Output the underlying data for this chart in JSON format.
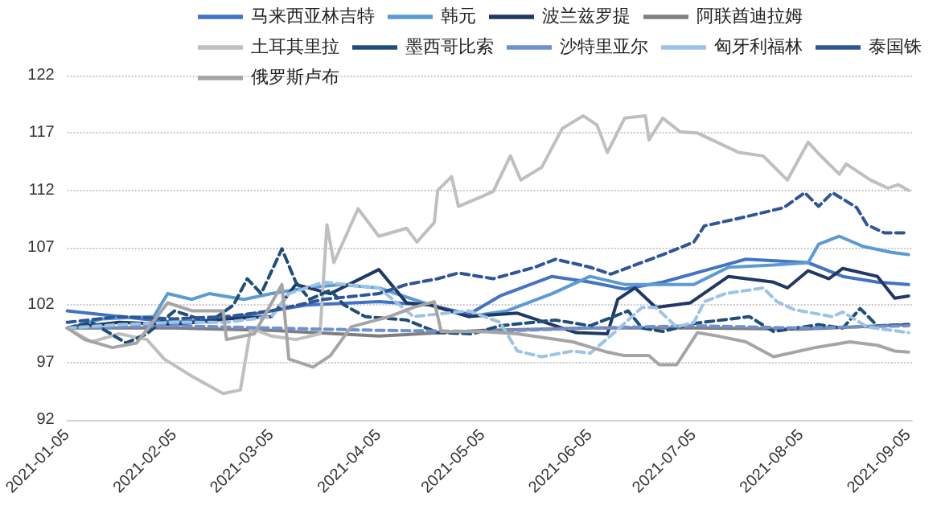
{
  "chart_data": {
    "type": "line",
    "legend": "top",
    "grid": "y",
    "marker": "none",
    "xlim": [
      "2021-01-05",
      "2021-09-06"
    ],
    "xticks": [
      "2021-01-05",
      "2021-02-05",
      "2021-03-05",
      "2021-04-05",
      "2021-05-05",
      "2021-06-05",
      "2021-07-05",
      "2021-08-05",
      "2021-09-05"
    ],
    "ylim": [
      92,
      122
    ],
    "yticks": [
      92,
      97,
      102,
      107,
      112,
      117,
      122
    ],
    "series": [
      {
        "name": "马来西亚林吉特",
        "color": "#4472c4",
        "line_style": "solid",
        "x": [
          "2021-01-05",
          "2021-01-20",
          "2021-02-05",
          "2021-02-20",
          "2021-03-05",
          "2021-03-15",
          "2021-04-05",
          "2021-04-20",
          "2021-05-01",
          "2021-05-10",
          "2021-05-25",
          "2021-06-05",
          "2021-06-15",
          "2021-06-26",
          "2021-07-14",
          "2021-07-20",
          "2021-08-07",
          "2021-08-17",
          "2021-08-27",
          "2021-09-05"
        ],
        "values": [
          101.5,
          101,
          100.5,
          100.8,
          101.5,
          102,
          102.3,
          102,
          101.2,
          102.8,
          104.5,
          104,
          103.4,
          104,
          105.5,
          106,
          105.7,
          104.5,
          104,
          103.8
        ]
      },
      {
        "name": "韩元",
        "color": "#5b9bd5",
        "line_style": "solid",
        "x": [
          "2021-01-05",
          "2021-01-15",
          "2021-01-30",
          "2021-02-03",
          "2021-02-10",
          "2021-02-15",
          "2021-02-25",
          "2021-03-05",
          "2021-03-15",
          "2021-03-25",
          "2021-04-05",
          "2021-04-20",
          "2021-05-01",
          "2021-05-12",
          "2021-05-25",
          "2021-06-05",
          "2021-06-15",
          "2021-07-05",
          "2021-07-15",
          "2021-07-28",
          "2021-08-07",
          "2021-08-10",
          "2021-08-16",
          "2021-08-23",
          "2021-08-31",
          "2021-09-05"
        ],
        "values": [
          100,
          100.8,
          101,
          103,
          102.5,
          103,
          102.5,
          103,
          103.5,
          103.8,
          103.5,
          102,
          101,
          101.5,
          103,
          104.5,
          103.8,
          103.8,
          105.3,
          105.5,
          105.7,
          107.3,
          108,
          107.1,
          106.6,
          106.4
        ]
      },
      {
        "name": "波兰兹罗提",
        "color": "#203864",
        "line_style": "solid",
        "x": [
          "2021-01-05",
          "2021-01-20",
          "2021-02-05",
          "2021-02-20",
          "2021-03-05",
          "2021-03-12",
          "2021-03-22",
          "2021-04-05",
          "2021-04-13",
          "2021-04-20",
          "2021-05-01",
          "2021-05-15",
          "2021-06-01",
          "2021-06-10",
          "2021-06-13",
          "2021-06-18",
          "2021-06-24",
          "2021-07-04",
          "2021-07-15",
          "2021-07-28",
          "2021-08-01",
          "2021-08-07",
          "2021-08-13",
          "2021-08-17",
          "2021-08-27",
          "2021-09-01",
          "2021-09-05"
        ],
        "values": [
          100,
          100.5,
          100.3,
          100.8,
          101,
          103.8,
          103,
          105.1,
          102.2,
          102,
          101,
          101.3,
          99.6,
          99.5,
          102.5,
          103.5,
          101.8,
          102.2,
          104.5,
          104,
          103.5,
          105,
          104.3,
          105.2,
          104.5,
          102.6,
          102.8
        ]
      },
      {
        "name": "阿联酋迪拉姆",
        "color": "#7f7f7f",
        "line_style": "solid",
        "x": [
          "2021-01-05",
          "2021-02-05",
          "2021-03-05",
          "2021-04-05",
          "2021-05-05",
          "2021-06-05",
          "2021-07-05",
          "2021-08-05",
          "2021-09-05"
        ],
        "values": [
          100,
          100,
          99.8,
          99.3,
          99.8,
          100,
          100,
          99.9,
          100.3
        ]
      },
      {
        "name": "土耳其里拉",
        "color": "#bfbfbf",
        "line_style": "solid",
        "x": [
          "2021-01-05",
          "2021-01-12",
          "2021-01-20",
          "2021-01-28",
          "2021-02-02",
          "2021-02-10",
          "2021-02-19",
          "2021-02-24",
          "2021-02-27",
          "2021-03-05",
          "2021-03-12",
          "2021-03-19",
          "2021-03-21",
          "2021-03-23",
          "2021-03-30",
          "2021-04-05",
          "2021-04-13",
          "2021-04-16",
          "2021-04-21",
          "2021-04-22",
          "2021-04-26",
          "2021-04-28",
          "2021-05-05",
          "2021-05-08",
          "2021-05-13",
          "2021-05-16",
          "2021-05-22",
          "2021-05-28",
          "2021-06-03",
          "2021-06-07",
          "2021-06-10",
          "2021-06-15",
          "2021-06-21",
          "2021-06-22",
          "2021-06-26",
          "2021-07-01",
          "2021-07-06",
          "2021-07-18",
          "2021-07-25",
          "2021-08-01",
          "2021-08-07",
          "2021-08-10",
          "2021-08-16",
          "2021-08-18",
          "2021-08-25",
          "2021-08-30",
          "2021-09-02",
          "2021-09-05"
        ],
        "values": [
          100,
          98.8,
          99.5,
          99,
          97.3,
          95.8,
          94.3,
          94.6,
          100,
          99.3,
          99,
          99.5,
          109,
          105.7,
          110.4,
          108,
          108.7,
          107.5,
          109.2,
          112,
          113.2,
          110.6,
          111.5,
          111.9,
          115,
          112.9,
          114,
          117.4,
          118.5,
          117.7,
          115.3,
          118.3,
          118.5,
          116.4,
          118.3,
          117.1,
          117,
          115.3,
          115,
          112.9,
          116.2,
          115.2,
          113.4,
          114.3,
          112.9,
          112.2,
          112.5,
          112
        ]
      },
      {
        "name": "墨西哥比索",
        "color": "#1f4e79",
        "line_style": "dashed",
        "x": [
          "2021-01-05",
          "2021-01-12",
          "2021-01-22",
          "2021-01-28",
          "2021-02-05",
          "2021-02-15",
          "2021-02-22",
          "2021-02-26",
          "2021-03-02",
          "2021-03-08",
          "2021-03-12",
          "2021-03-16",
          "2021-03-22",
          "2021-03-26",
          "2021-04-01",
          "2021-04-13",
          "2021-04-22",
          "2021-05-02",
          "2021-05-10",
          "2021-05-26",
          "2021-06-05",
          "2021-06-16",
          "2021-06-20",
          "2021-06-26",
          "2021-07-05",
          "2021-07-21",
          "2021-07-28",
          "2021-08-10",
          "2021-08-17",
          "2021-08-22",
          "2021-08-27",
          "2021-09-05"
        ],
        "values": [
          100,
          100.5,
          98.7,
          99.5,
          101.5,
          100.5,
          102,
          104.3,
          103,
          106.9,
          104,
          102.5,
          103.3,
          102,
          101,
          100.7,
          99.6,
          99.5,
          100.2,
          100.7,
          100.2,
          101.5,
          100,
          99.7,
          100.4,
          101,
          99.7,
          100.3,
          100,
          101.7,
          100.2,
          100.3
        ]
      },
      {
        "name": "沙特里亚尔",
        "color": "#6f8fd3",
        "line_style": "dashed",
        "x": [
          "2021-01-05",
          "2021-02-05",
          "2021-03-05",
          "2021-04-05",
          "2021-05-05",
          "2021-06-05",
          "2021-07-05",
          "2021-08-05",
          "2021-09-05"
        ],
        "values": [
          100,
          100.2,
          100,
          99.8,
          99.7,
          100,
          100.2,
          100,
          100.2
        ]
      },
      {
        "name": "匈牙利福林",
        "color": "#9dc3e6",
        "line_style": "dashed",
        "x": [
          "2021-01-05",
          "2021-01-20",
          "2021-02-05",
          "2021-02-20",
          "2021-03-05",
          "2021-03-10",
          "2021-03-20",
          "2021-04-05",
          "2021-04-15",
          "2021-05-01",
          "2021-05-10",
          "2021-05-15",
          "2021-05-22",
          "2021-05-31",
          "2021-06-05",
          "2021-06-12",
          "2021-06-20",
          "2021-06-24",
          "2021-06-30",
          "2021-07-05",
          "2021-07-08",
          "2021-07-14",
          "2021-07-25",
          "2021-07-29",
          "2021-08-03",
          "2021-08-14",
          "2021-08-17",
          "2021-08-24",
          "2021-09-05"
        ],
        "values": [
          100,
          100.3,
          100.5,
          100.5,
          101,
          103,
          104,
          103.5,
          101,
          101.5,
          100.5,
          98,
          97.5,
          98,
          97.8,
          99.6,
          101.8,
          101.8,
          100.1,
          100.5,
          102.3,
          103,
          103.5,
          102.3,
          101.6,
          101,
          101.4,
          100.1,
          99.6
        ]
      },
      {
        "name": "泰国铢",
        "color": "#2f5597",
        "line_style": "dashed",
        "x": [
          "2021-01-05",
          "2021-01-20",
          "2021-02-05",
          "2021-02-20",
          "2021-03-05",
          "2021-03-20",
          "2021-04-05",
          "2021-04-13",
          "2021-04-22",
          "2021-04-28",
          "2021-05-08",
          "2021-05-20",
          "2021-05-26",
          "2021-06-05",
          "2021-06-11",
          "2021-06-26",
          "2021-07-05",
          "2021-07-08",
          "2021-07-20",
          "2021-07-31",
          "2021-08-06",
          "2021-08-10",
          "2021-08-14",
          "2021-08-21",
          "2021-08-24",
          "2021-08-29",
          "2021-09-05"
        ],
        "values": [
          100.5,
          101,
          100.8,
          101,
          101.5,
          102.5,
          103,
          103.8,
          104.3,
          104.8,
          104.3,
          105.3,
          106,
          105.3,
          104.7,
          106.4,
          107.5,
          108.9,
          109.7,
          110.5,
          111.8,
          110.6,
          111.8,
          110.5,
          109,
          108.3,
          108.3
        ]
      },
      {
        "name": "俄罗斯卢布",
        "color": "#a5a5a5",
        "line_style": "solid",
        "x": [
          "2021-01-05",
          "2021-01-10",
          "2021-01-18",
          "2021-01-25",
          "2021-02-03",
          "2021-02-10",
          "2021-02-19",
          "2021-02-20",
          "2021-02-28",
          "2021-03-08",
          "2021-03-10",
          "2021-03-17",
          "2021-03-22",
          "2021-03-28",
          "2021-04-08",
          "2021-04-15",
          "2021-04-21",
          "2021-04-23",
          "2021-05-05",
          "2021-05-15",
          "2021-05-31",
          "2021-06-10",
          "2021-06-15",
          "2021-06-22",
          "2021-06-25",
          "2021-06-30",
          "2021-07-06",
          "2021-07-12",
          "2021-07-20",
          "2021-07-28",
          "2021-08-09",
          "2021-08-19",
          "2021-08-27",
          "2021-09-01",
          "2021-09-05"
        ],
        "values": [
          100,
          99,
          98.3,
          98.7,
          102.2,
          101.5,
          101.5,
          99,
          99.5,
          103.8,
          97.3,
          96.6,
          97.6,
          100.1,
          101,
          101.8,
          102.3,
          99.7,
          99.7,
          99.5,
          98.8,
          97.9,
          97.6,
          97.6,
          96.8,
          96.8,
          99.6,
          99.3,
          98.8,
          97.5,
          98.3,
          98.8,
          98.5,
          98,
          97.9
        ]
      }
    ]
  }
}
